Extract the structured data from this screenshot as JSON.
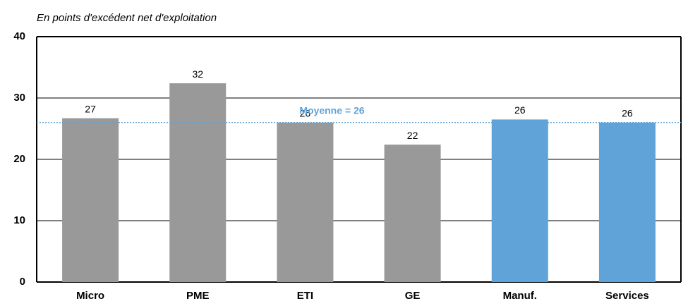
{
  "chart_data": {
    "type": "bar",
    "subtitle": "En points d'excédent net d'exploitation",
    "categories": [
      "Micro",
      "PME",
      "ETI",
      "GE",
      "Manuf.",
      "Services"
    ],
    "values": [
      26.7,
      32.4,
      26,
      22.4,
      26.5,
      26
    ],
    "value_labels": [
      "27",
      "32",
      "26",
      "22",
      "26",
      "26"
    ],
    "colors": [
      "#999999",
      "#999999",
      "#999999",
      "#999999",
      "#5fa3d9",
      "#5fa3d9"
    ],
    "ylim": [
      0,
      40
    ],
    "yticks": [
      0,
      10,
      20,
      30,
      40
    ],
    "grid": true,
    "reference_line": {
      "label": "Moyenne = 26",
      "value": 26,
      "color": "#5fa3d9"
    }
  }
}
